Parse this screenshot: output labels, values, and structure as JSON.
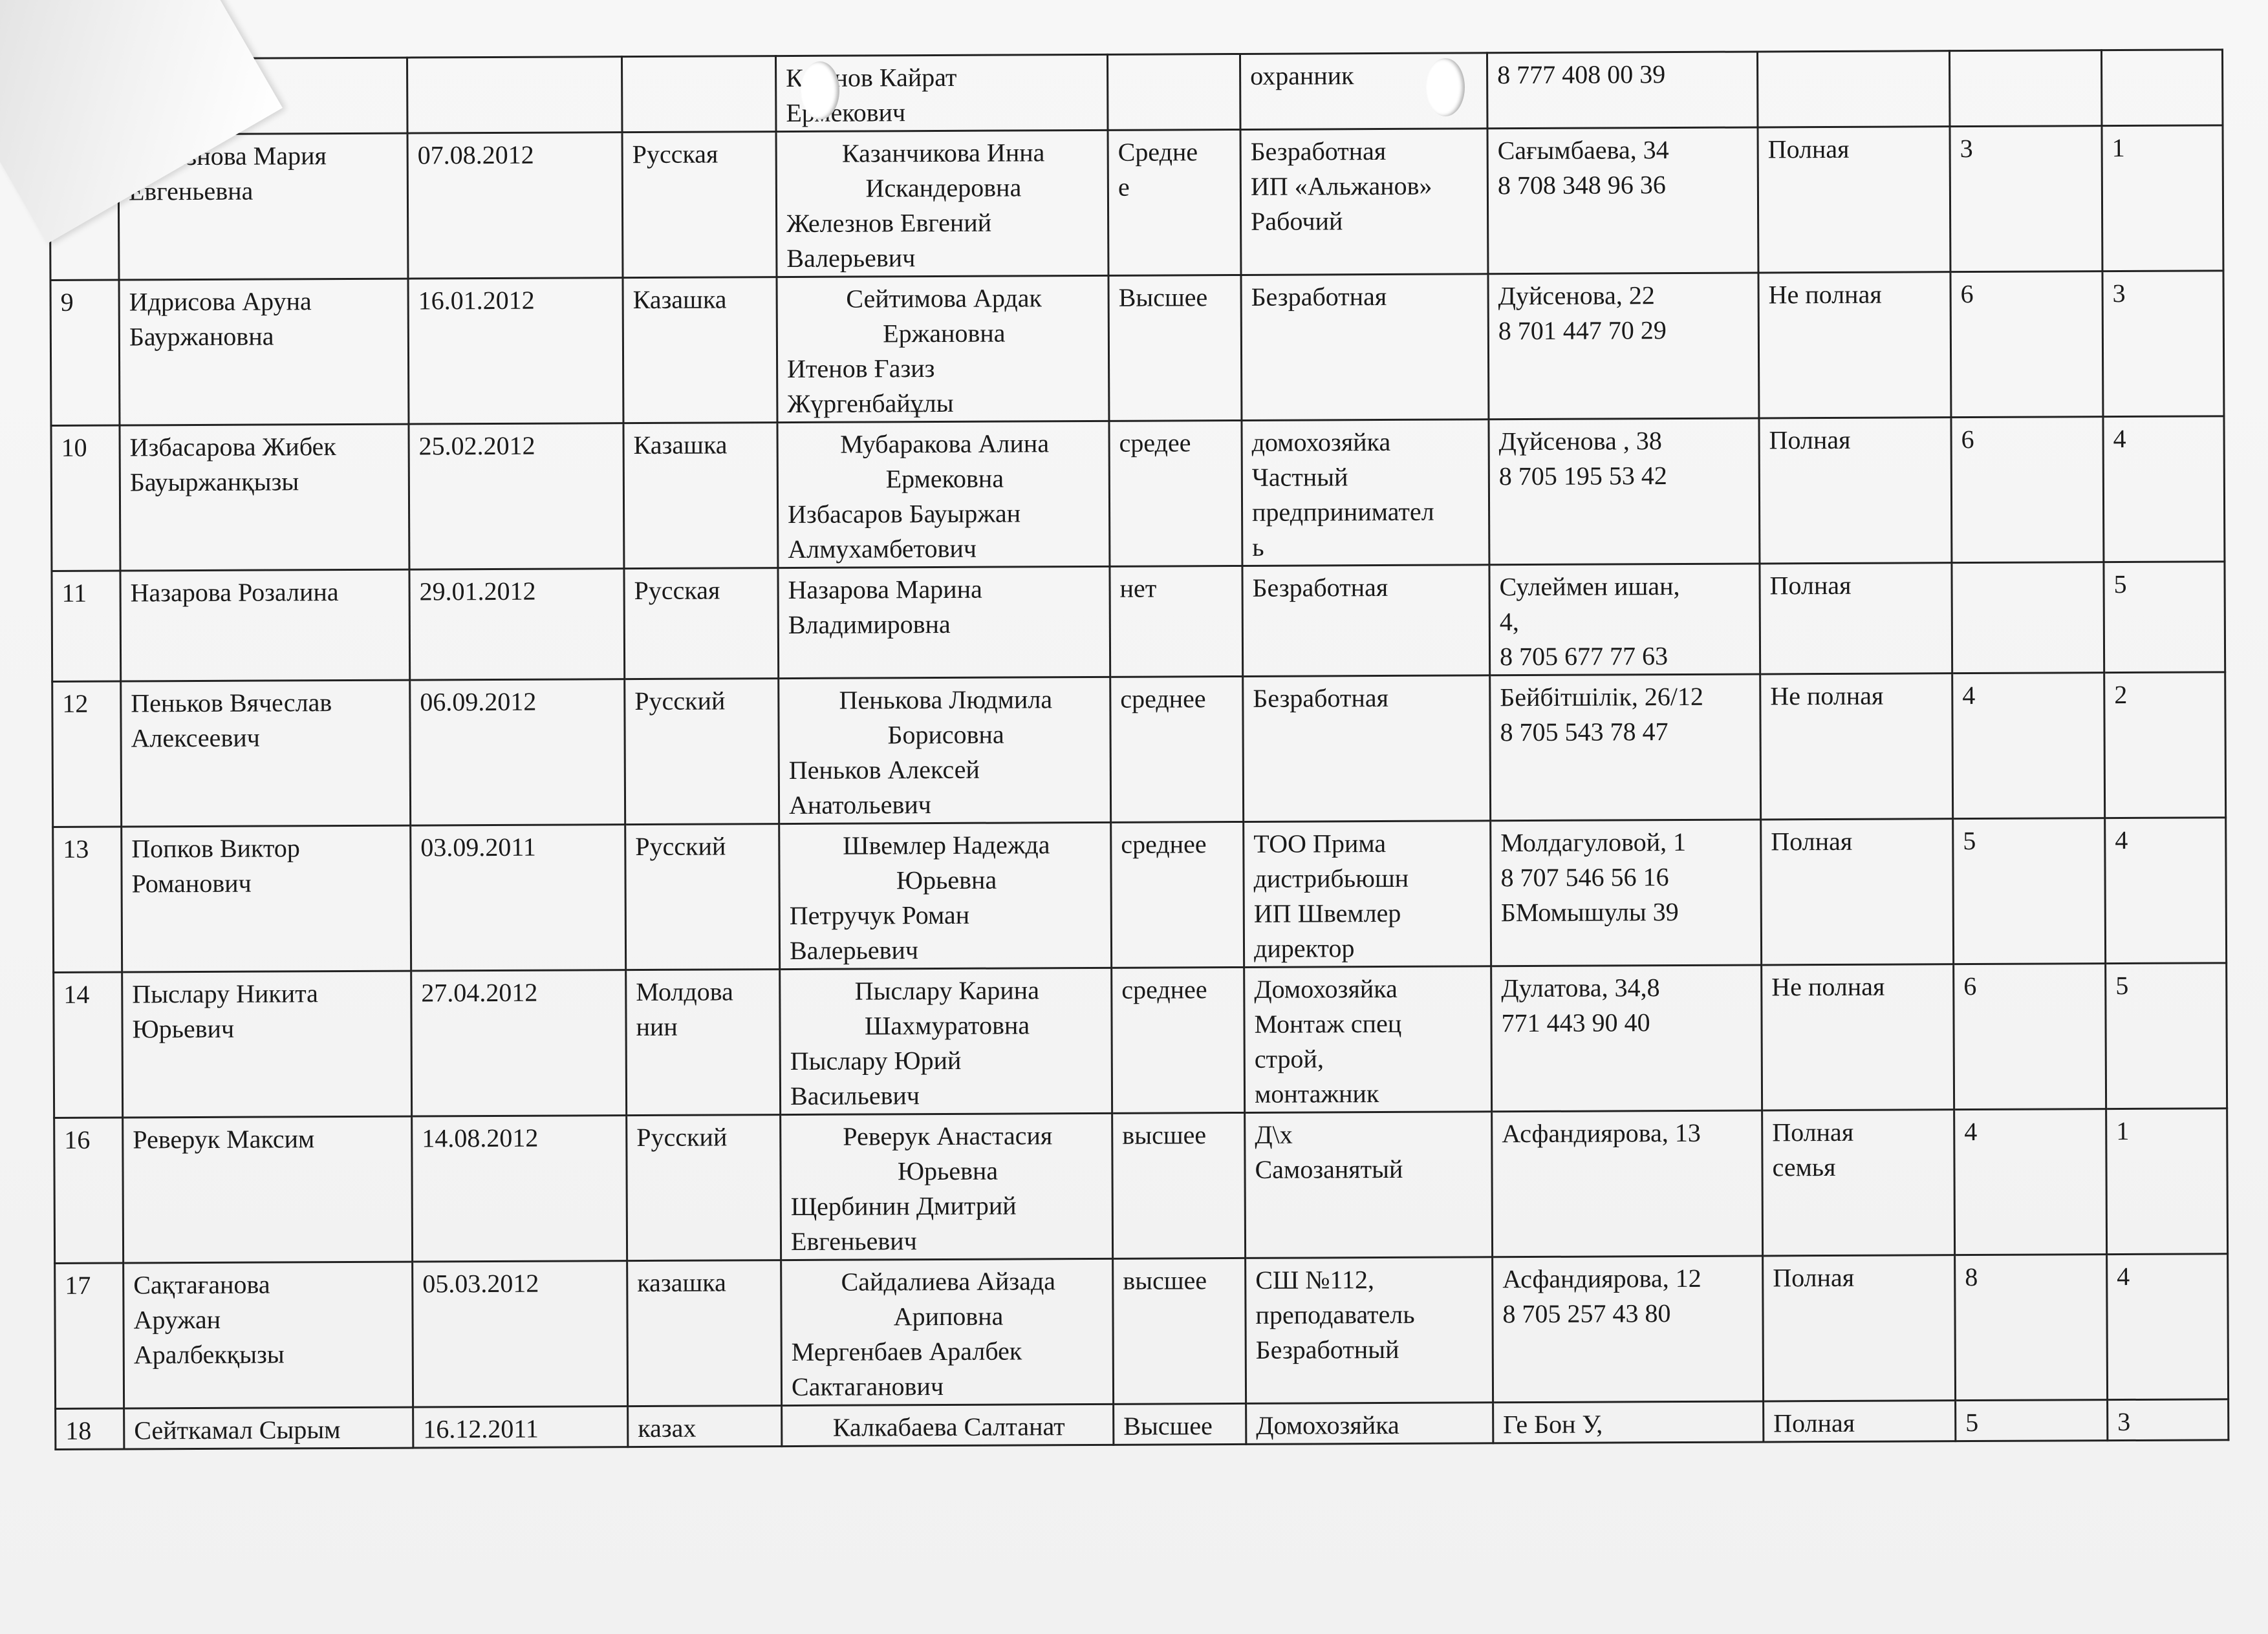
{
  "columns": [
    "num",
    "name",
    "dob",
    "nationality",
    "parents",
    "education",
    "work",
    "address",
    "family",
    "c1",
    "c2"
  ],
  "rows": [
    {
      "num": "",
      "name": "",
      "dob": "",
      "nationality": "",
      "mother": "",
      "father": "К ранов Кайрат\nЕрмекович",
      "education": "",
      "work": "охранник",
      "address": "8 777 408 00 39",
      "family": "",
      "c1": "",
      "c2": ""
    },
    {
      "num": "8",
      "name": "Железнова Мария\nЕвгеньевна",
      "dob": "07.08.2012",
      "nationality": "Русская",
      "mother": "Казанчикова Инна\nИскандеровна",
      "father": "Железнов Евгений\nВалерьевич",
      "education": "Средне\nе",
      "work": "Безработная\nИП «Альжанов»\nРабочий",
      "address": "Сағымбаева, 34\n8 708 348 96 36",
      "family": "Полная",
      "c1": "3",
      "c2": "1"
    },
    {
      "num": "9",
      "name": "Идрисова Аруна\nБауржановна",
      "dob": "16.01.2012",
      "nationality": "Казашка",
      "mother": "Сейтимова Ардак\nЕржановна",
      "father": "Итенов Ғазиз\nЖүргенбайұлы",
      "education": "Высшее",
      "work": "Безработная",
      "address": "Дуйсенова, 22\n8 701 447 70 29",
      "family": "Не полная",
      "c1": "6",
      "c2": "3"
    },
    {
      "num": "10",
      "name": "Избасарова Жибек\nБауыржанқызы",
      "dob": "25.02.2012",
      "nationality": "Казашка",
      "mother": "Мубаракова Алина\nЕрмековна",
      "father": "Избасаров Бауыржан\nАлмухамбетович",
      "education": "средее",
      "work": "домохозяйка\nЧастный\nпредпринимател\nь",
      "address": "Дүйсенова , 38\n8 705 195 53 42",
      "family": "Полная",
      "c1": "6",
      "c2": "4"
    },
    {
      "num": "11",
      "name": "Назарова Розалина",
      "dob": "29.01.2012",
      "nationality": "Русская",
      "mother": "",
      "father": "Назарова Марина\nВладимировна",
      "education": "нет",
      "work": "Безработная",
      "address": "Сулеймен ишан,\n4,\n8 705 677 77 63",
      "family": "Полная",
      "c1": "",
      "c2": "5"
    },
    {
      "num": "12",
      "name": "Пеньков Вячеслав\nАлексеевич",
      "dob": "06.09.2012",
      "nationality": "Русский",
      "mother": "Пенькова Людмила\nБорисовна",
      "father": "Пеньков Алексей\nАнатольевич",
      "education": "среднее",
      "work": "Безработная",
      "address": "Бейбітшілік, 26/12\n8 705 543 78 47",
      "family": "Не полная",
      "c1": "4",
      "c2": "2"
    },
    {
      "num": "13",
      "name": "Попков Виктор\nРоманович",
      "dob": "03.09.2011",
      "nationality": "Русский",
      "mother": "Швемлер Надежда\nЮрьевна",
      "father": "Петручук Роман\nВалерьевич",
      "education": "среднее",
      "work": "ТОО Прима\nдистрибьюшн\nИП  Швемлер\nдиректор",
      "address": "Молдагуловой, 1\n8 707 546 56 16\nБМомышулы 39",
      "family": "Полная",
      "c1": "5",
      "c2": "4"
    },
    {
      "num": "14",
      "name": "Пыслару Никита\nЮрьевич",
      "dob": "27.04.2012",
      "nationality": "Молдова\nнин",
      "mother": "Пыслару Карина\nШахмуратовна",
      "father": "Пыслару Юрий\nВасильевич",
      "education": "среднее",
      "work": "Домохозяйка\nМонтаж спец\nстрой,\nмонтажник",
      "address": "Дулатова, 34,8\n771 443 90 40",
      "family": "Не полная",
      "c1": "6",
      "c2": "5"
    },
    {
      "num": "16",
      "name": "Реверук Максим",
      "dob": "14.08.2012",
      "nationality": "Русский",
      "mother": "Реверук Анастасия\nЮрьевна",
      "father": "Щербинин Дмитрий\nЕвгеньевич",
      "education": "высшее",
      "work": "Д\\х\nСамозанятый",
      "address": "Асфандиярова, 13",
      "family": "Полная\nсемья",
      "c1": "4",
      "c2": "1"
    },
    {
      "num": "17",
      "name": "Сақтағанова\nАружан\nАралбекқызы",
      "dob": "05.03.2012",
      "nationality": "казашка",
      "mother": "Сайдалиева Айзада\nАриповна",
      "father": "Мергенбаев Аралбек\nСактаганович",
      "education": "высшее",
      "work": "СШ №112,\nпреподаватель\nБезработный",
      "address": "Асфандиярова, 12\n8 705 257 43 80",
      "family": "Полная",
      "c1": "8",
      "c2": "4"
    },
    {
      "num": "18",
      "name": "Сейткамал Сырым",
      "dob": "16.12.2011",
      "nationality": "казах",
      "mother": "Калкабаева Салтанат",
      "father": "",
      "education": "Высшее",
      "work": "Домохозяйка",
      "address": "Ге Бон У,",
      "family": "Полная",
      "c1": "5",
      "c2": "3"
    }
  ]
}
